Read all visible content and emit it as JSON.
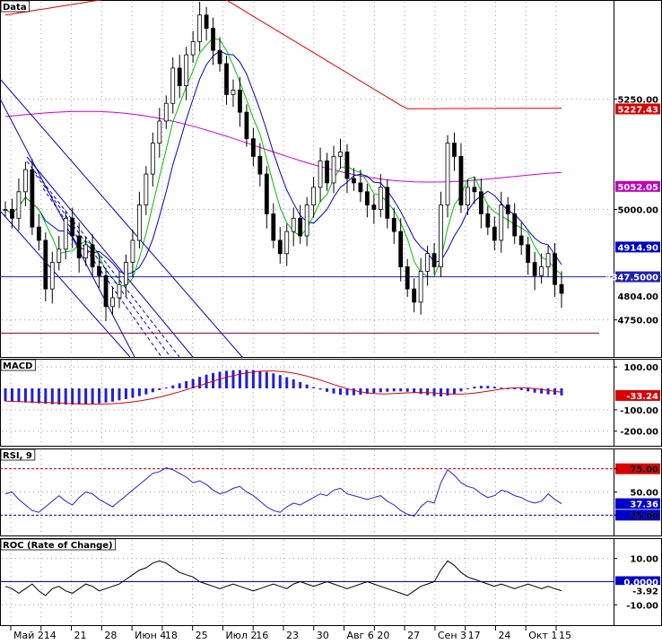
{
  "chart_data": [
    {
      "type": "candlestick",
      "panel": "price",
      "title": "Data",
      "x_labels": [
        "Май 2",
        "14",
        "21",
        "28",
        "Июн 4",
        "18",
        "25",
        "Июл 2",
        "16",
        "23",
        "30",
        "Авг 6",
        "20",
        "27",
        "Сен 3",
        "17",
        "24",
        "Окт 1",
        "15"
      ],
      "y_ticks": [
        5250,
        5000,
        4750
      ],
      "ylim": [
        4670,
        5470
      ],
      "price_series": [
        5000,
        4980,
        5040,
        5090,
        4960,
        4930,
        4820,
        4880,
        4910,
        4980,
        4940,
        4890,
        4920,
        4870,
        4850,
        4780,
        4800,
        4830,
        4880,
        4930,
        5010,
        5080,
        5150,
        5200,
        5240,
        5320,
        5280,
        5350,
        5380,
        5440,
        5410,
        5360,
        5330,
        5260,
        5270,
        5220,
        5160,
        5120,
        5080,
        4990,
        4930,
        4900,
        4950,
        4980,
        4940,
        5010,
        5050,
        5110,
        5060,
        5120,
        5130,
        5070,
        5060,
        5040,
        5010,
        5000,
        5050,
        4980,
        4950,
        4870,
        4820,
        4790,
        4860,
        4900,
        4870,
        5010,
        5150,
        5120,
        5010,
        5050,
        5040,
        4990,
        4960,
        4930,
        5010,
        4990,
        4940,
        4920,
        4880,
        4850,
        4870,
        4900,
        4830,
        4810
      ],
      "horizontal_lines": [
        {
          "label": "4847.5000",
          "value": 4847.5,
          "color": "#1f1fb4"
        },
        {
          "value": 4720,
          "color": "#800040"
        }
      ],
      "price_labels": [
        {
          "text": "5227.43",
          "value": 5227.43,
          "bg": "#d80000"
        },
        {
          "text": "5052.05",
          "value": 5052.05,
          "bg": "#c000c0"
        },
        {
          "text": "4914.90",
          "value": 4914.9,
          "bg": "#0000c8"
        },
        {
          "text": "4847.5000",
          "value": 4847.5,
          "bg": "#1f1fb4"
        },
        {
          "text": "4804.00",
          "value": 4804,
          "bg": "#ffffff"
        }
      ],
      "moving_average_colors": {
        "slow": "#e00000",
        "mid": "#d000d0",
        "fast": "#0000d0",
        "faster": "#00c000"
      }
    },
    {
      "type": "bar",
      "panel": "macd",
      "title": "MACD",
      "y_ticks": [
        100,
        -100,
        -200
      ],
      "ylim": [
        -260,
        130
      ],
      "histogram": [
        -60,
        -62,
        -64,
        -66,
        -68,
        -70,
        -72,
        -74,
        -75,
        -76,
        -76,
        -75,
        -74,
        -72,
        -70,
        -66,
        -62,
        -56,
        -50,
        -44,
        -36,
        -28,
        -18,
        -8,
        4,
        14,
        24,
        34,
        44,
        54,
        64,
        72,
        78,
        82,
        85,
        86,
        86,
        85,
        82,
        77,
        70,
        62,
        52,
        42,
        30,
        18,
        6,
        -6,
        -16,
        -24,
        -30,
        -32,
        -32,
        -30,
        -26,
        -22,
        -18,
        -16,
        -14,
        -14,
        -16,
        -20,
        -26,
        -32,
        -36,
        -38,
        -34,
        -26,
        -14,
        -2,
        8,
        12,
        12,
        8,
        4,
        0,
        -4,
        -8,
        -14,
        -20,
        -24,
        -28,
        -30,
        -33
      ],
      "signal_color": "#e00000",
      "value_labels": [
        {
          "text": "-33.24",
          "value": -33.24,
          "bg": "#d80000"
        }
      ]
    },
    {
      "type": "line",
      "panel": "rsi",
      "title": "RSI, 9",
      "y_ticks": [
        75,
        50,
        25
      ],
      "ylim": [
        5,
        95
      ],
      "values": [
        48,
        50,
        42,
        36,
        30,
        28,
        34,
        40,
        46,
        40,
        36,
        44,
        50,
        48,
        42,
        38,
        34,
        40,
        46,
        52,
        58,
        64,
        70,
        72,
        76,
        74,
        70,
        66,
        60,
        62,
        58,
        52,
        48,
        50,
        54,
        56,
        50,
        46,
        40,
        34,
        30,
        28,
        34,
        38,
        36,
        40,
        44,
        48,
        46,
        52,
        54,
        48,
        46,
        44,
        42,
        44,
        46,
        40,
        36,
        30,
        26,
        24,
        34,
        40,
        38,
        60,
        74,
        68,
        60,
        56,
        54,
        48,
        44,
        46,
        52,
        50,
        46,
        44,
        40,
        38,
        40,
        48,
        42,
        37.36
      ],
      "reference_lines": [
        75,
        25
      ],
      "value_labels": [
        {
          "text": "75.00",
          "value": 75,
          "bg": "#d80000"
        },
        {
          "text": "37.36",
          "value": 37.36,
          "bg": "#0000c8"
        },
        {
          "text": "25.00",
          "value": 25,
          "bg": "#0000c8"
        }
      ]
    },
    {
      "type": "line",
      "panel": "roc",
      "title": "ROC (Rate of Change)",
      "y_ticks": [
        10,
        -10
      ],
      "ylim": [
        -18,
        18
      ],
      "values": [
        -2,
        -3,
        -5,
        -3,
        -1,
        -4,
        -6,
        -3,
        -2,
        -4,
        -5,
        -3,
        -1,
        -2,
        -4,
        -3,
        -2,
        -1,
        1,
        3,
        5,
        6,
        8,
        9,
        8,
        6,
        4,
        3,
        2,
        0,
        -1,
        -2,
        -3,
        -2,
        -1,
        -2,
        -3,
        -4,
        -3,
        -2,
        -1,
        -2,
        -3,
        -1,
        0,
        -1,
        -2,
        -1,
        0,
        -1,
        -2,
        -3,
        -2,
        -1,
        0,
        -1,
        -2,
        -3,
        -4,
        -5,
        -6,
        -4,
        -2,
        -1,
        0,
        5,
        9,
        7,
        4,
        2,
        1,
        0,
        -1,
        -2,
        -1,
        -2,
        -3,
        -2,
        -1,
        -2,
        -3,
        -2,
        -3,
        -3.92
      ],
      "reference_lines": [
        0
      ],
      "value_labels": [
        {
          "text": "0.0000",
          "value": 0,
          "bg": "#0000c8"
        },
        {
          "text": "-3.92",
          "value": -3.92,
          "bg": "#ffffff"
        }
      ]
    }
  ],
  "colors": {
    "background": "#ffffff",
    "grid": "#9a9a9a",
    "candle_up": "#ffffff",
    "candle_down": "#000000",
    "macd_bars": "#2020e0",
    "rsi_line": "#2020d0",
    "roc_line": "#000000"
  }
}
